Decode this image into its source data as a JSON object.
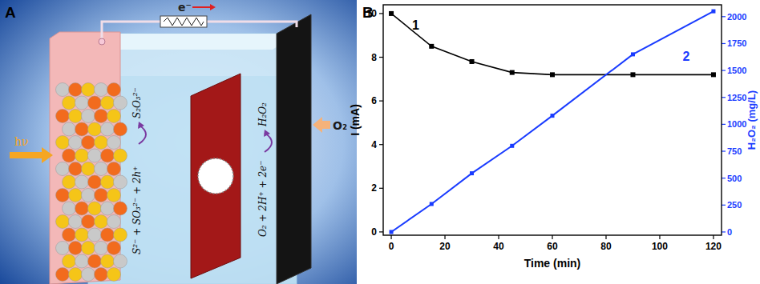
{
  "diagram": {
    "panel_label": "A",
    "electron": "e⁻",
    "light": "hν",
    "oxygen": "O₂",
    "anode_reaction": {
      "reactants": "S²⁻ + SO₃²⁻ + 2h⁺",
      "product": "S₂O₃²⁻"
    },
    "cathode_reaction": {
      "reactants": "O₂ + 2H⁺ + 2e⁻",
      "product": "H₂O₂"
    }
  },
  "chart_data": {
    "type": "line",
    "panel_label": "B",
    "xlabel": "Time (min)",
    "ylabel": "I (mA)",
    "y2label": "H₂O₂ (mg/L)",
    "x": [
      0,
      15,
      30,
      45,
      60,
      90,
      120
    ],
    "series": [
      {
        "name": "1",
        "color": "#000000",
        "marker": "square",
        "values": [
          10,
          8.5,
          7.8,
          7.3,
          7.2,
          7.2,
          7.2
        ]
      },
      {
        "name": "2",
        "color": "#1a3cff",
        "marker": "square",
        "axis": "y2",
        "values": [
          0,
          260,
          545,
          800,
          1080,
          1650,
          2050
        ]
      }
    ],
    "xlim": [
      -3,
      123
    ],
    "xticks": [
      0,
      20,
      40,
      60,
      80,
      100,
      120
    ],
    "ylim": [
      -0.15,
      10.4
    ],
    "yticks": [
      0,
      2,
      4,
      6,
      8,
      10
    ],
    "y2lim": [
      -30,
      2110
    ],
    "y2ticks": [
      0,
      250,
      500,
      750,
      1000,
      1250,
      1500,
      1750,
      2000
    ]
  }
}
